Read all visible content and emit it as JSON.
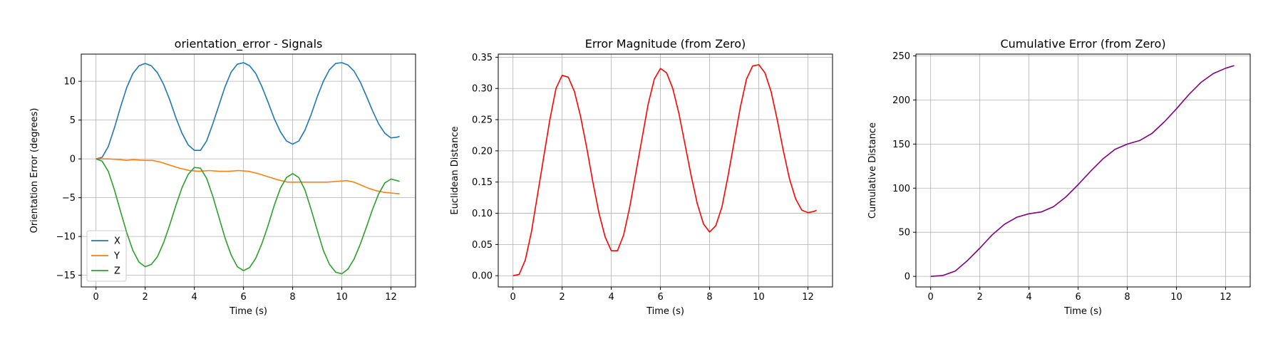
{
  "chart_data": [
    {
      "type": "line",
      "title": "orientation_error - Signals",
      "xlabel": "Time (s)",
      "ylabel": "Orientation Error (degrees)",
      "xlim": [
        -0.6,
        13.0
      ],
      "ylim": [
        -16.5,
        13.5
      ],
      "xticks": [
        0,
        2,
        4,
        6,
        8,
        10,
        12
      ],
      "yticks": [
        -15,
        -10,
        -5,
        0,
        5,
        10
      ],
      "grid": true,
      "legend": "lower-left",
      "series": [
        {
          "name": "X",
          "color": "#1f77b4",
          "x": [
            0,
            0.25,
            0.5,
            0.75,
            1.0,
            1.25,
            1.5,
            1.75,
            2.0,
            2.25,
            2.5,
            2.75,
            3.0,
            3.25,
            3.5,
            3.75,
            4.0,
            4.25,
            4.5,
            4.75,
            5.0,
            5.25,
            5.5,
            5.75,
            6.0,
            6.25,
            6.5,
            6.75,
            7.0,
            7.25,
            7.5,
            7.75,
            8.0,
            8.25,
            8.5,
            8.75,
            9.0,
            9.25,
            9.5,
            9.75,
            10.0,
            10.25,
            10.5,
            10.75,
            11.0,
            11.25,
            11.5,
            11.75,
            12.0,
            12.25,
            12.35
          ],
          "y": [
            0.0,
            0.2,
            1.6,
            4.0,
            6.7,
            9.2,
            11.0,
            12.0,
            12.3,
            12.0,
            11.1,
            9.6,
            7.6,
            5.3,
            3.3,
            1.8,
            1.1,
            1.1,
            2.3,
            4.5,
            6.9,
            9.3,
            11.2,
            12.2,
            12.4,
            12.0,
            11.0,
            9.3,
            7.3,
            5.2,
            3.5,
            2.3,
            1.9,
            2.3,
            3.7,
            5.7,
            8.0,
            10.0,
            11.5,
            12.3,
            12.4,
            12.1,
            11.3,
            9.9,
            8.1,
            6.2,
            4.5,
            3.3,
            2.7,
            2.8,
            2.9
          ]
        },
        {
          "name": "Y",
          "color": "#ff7f0e",
          "x": [
            0,
            0.5,
            1.0,
            1.25,
            1.5,
            2.0,
            2.3,
            2.6,
            3.0,
            3.4,
            3.8,
            4.2,
            4.6,
            5.0,
            5.4,
            5.8,
            6.2,
            6.6,
            7.0,
            7.4,
            7.8,
            8.2,
            8.6,
            9.0,
            9.4,
            9.8,
            10.2,
            10.5,
            10.8,
            11.1,
            11.4,
            11.7,
            12.0,
            12.35
          ],
          "y": [
            0.0,
            0.0,
            -0.1,
            -0.2,
            -0.1,
            -0.2,
            -0.2,
            -0.4,
            -0.8,
            -1.2,
            -1.5,
            -1.6,
            -1.5,
            -1.6,
            -1.6,
            -1.5,
            -1.6,
            -1.9,
            -2.3,
            -2.7,
            -3.0,
            -3.0,
            -3.0,
            -3.0,
            -3.0,
            -2.9,
            -2.8,
            -3.0,
            -3.4,
            -3.8,
            -4.1,
            -4.3,
            -4.4,
            -4.5
          ]
        },
        {
          "name": "Z",
          "color": "#2ca02c",
          "x": [
            0,
            0.25,
            0.5,
            0.75,
            1.0,
            1.25,
            1.5,
            1.75,
            2.0,
            2.25,
            2.5,
            2.75,
            3.0,
            3.25,
            3.5,
            3.75,
            4.0,
            4.25,
            4.5,
            4.75,
            5.0,
            5.25,
            5.5,
            5.75,
            6.0,
            6.25,
            6.5,
            6.75,
            7.0,
            7.25,
            7.5,
            7.75,
            8.0,
            8.25,
            8.5,
            8.75,
            9.0,
            9.25,
            9.5,
            9.75,
            10.0,
            10.25,
            10.5,
            10.75,
            11.0,
            11.25,
            11.5,
            11.75,
            12.0,
            12.25,
            12.35
          ],
          "y": [
            0.0,
            -0.3,
            -1.6,
            -4.0,
            -6.8,
            -9.5,
            -11.8,
            -13.3,
            -13.9,
            -13.6,
            -12.6,
            -10.8,
            -8.5,
            -6.0,
            -3.7,
            -2.0,
            -1.1,
            -1.2,
            -2.5,
            -4.8,
            -7.5,
            -10.2,
            -12.4,
            -13.9,
            -14.4,
            -14.0,
            -12.8,
            -10.9,
            -8.6,
            -6.0,
            -3.8,
            -2.4,
            -1.9,
            -2.4,
            -4.0,
            -6.5,
            -9.2,
            -11.8,
            -13.6,
            -14.6,
            -14.8,
            -14.2,
            -12.9,
            -11.0,
            -8.8,
            -6.5,
            -4.5,
            -3.1,
            -2.6,
            -2.8,
            -2.9
          ]
        }
      ]
    },
    {
      "type": "line",
      "title": "Error Magnitude (from Zero)",
      "xlabel": "Time (s)",
      "ylabel": "Euclidean Distance",
      "xlim": [
        -0.6,
        13.0
      ],
      "ylim": [
        -0.018,
        0.355
      ],
      "xticks": [
        0,
        2,
        4,
        6,
        8,
        10,
        12
      ],
      "yticks": [
        0.0,
        0.05,
        0.1,
        0.15,
        0.2,
        0.25,
        0.3,
        0.35
      ],
      "ytick_labels": [
        "0.00",
        "0.05",
        "0.10",
        "0.15",
        "0.20",
        "0.25",
        "0.30",
        "0.35"
      ],
      "grid": true,
      "legend": "none",
      "series": [
        {
          "color": "#ff0000",
          "x": [
            0,
            0.25,
            0.5,
            0.75,
            1.0,
            1.25,
            1.5,
            1.75,
            2.0,
            2.25,
            2.5,
            2.75,
            3.0,
            3.25,
            3.5,
            3.75,
            4.0,
            4.25,
            4.5,
            4.75,
            5.0,
            5.25,
            5.5,
            5.75,
            6.0,
            6.25,
            6.5,
            6.75,
            7.0,
            7.25,
            7.5,
            7.75,
            8.0,
            8.25,
            8.5,
            8.75,
            9.0,
            9.25,
            9.5,
            9.75,
            10.0,
            10.25,
            10.5,
            10.75,
            11.0,
            11.25,
            11.5,
            11.75,
            12.0,
            12.25,
            12.35
          ],
          "y": [
            0.0,
            0.002,
            0.025,
            0.07,
            0.13,
            0.19,
            0.25,
            0.3,
            0.321,
            0.318,
            0.295,
            0.255,
            0.205,
            0.15,
            0.1,
            0.062,
            0.04,
            0.04,
            0.065,
            0.11,
            0.165,
            0.22,
            0.275,
            0.315,
            0.332,
            0.325,
            0.3,
            0.26,
            0.21,
            0.16,
            0.115,
            0.083,
            0.07,
            0.08,
            0.11,
            0.16,
            0.215,
            0.27,
            0.315,
            0.336,
            0.338,
            0.325,
            0.295,
            0.25,
            0.2,
            0.155,
            0.123,
            0.105,
            0.101,
            0.103,
            0.105
          ]
        }
      ]
    },
    {
      "type": "line",
      "title": "Cumulative Error (from Zero)",
      "xlabel": "Time (s)",
      "ylabel": "Cumulative Distance",
      "xlim": [
        -0.6,
        13.0
      ],
      "ylim": [
        -12,
        252
      ],
      "xticks": [
        0,
        2,
        4,
        6,
        8,
        10,
        12
      ],
      "yticks": [
        0,
        50,
        100,
        150,
        200,
        250
      ],
      "grid": true,
      "legend": "none",
      "series": [
        {
          "color": "#800080",
          "x": [
            0,
            0.5,
            1.0,
            1.5,
            2.0,
            2.5,
            3.0,
            3.5,
            4.0,
            4.5,
            5.0,
            5.5,
            6.0,
            6.5,
            7.0,
            7.5,
            8.0,
            8.5,
            9.0,
            9.5,
            10.0,
            10.5,
            11.0,
            11.5,
            12.0,
            12.35
          ],
          "y": [
            0,
            1,
            6,
            18,
            32,
            47,
            59,
            67,
            71,
            73,
            79,
            90,
            104,
            119,
            133,
            144,
            150,
            154,
            162,
            175,
            190,
            206,
            220,
            230,
            236,
            239
          ]
        }
      ]
    }
  ]
}
